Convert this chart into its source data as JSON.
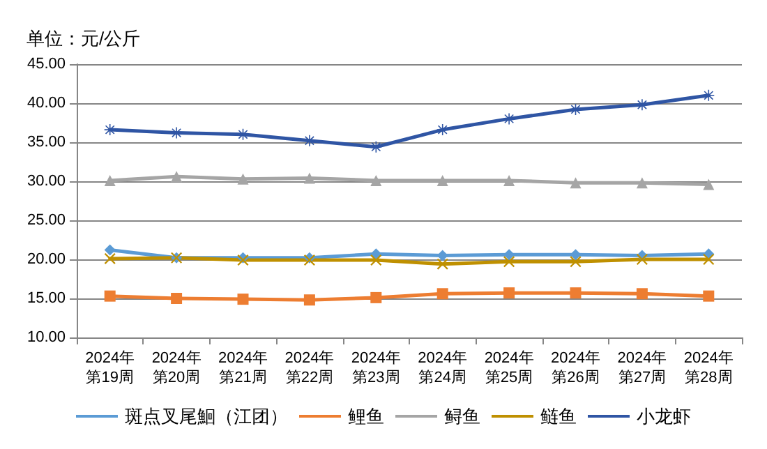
{
  "chart_data": {
    "type": "line",
    "title": "单位：元/公斤",
    "categories": [
      "2024年第19周",
      "2024年第20周",
      "2024年第21周",
      "2024年第22周",
      "2024年第23周",
      "2024年第24周",
      "2024年第25周",
      "2024年第26周",
      "2024年第27周",
      "2024年第28周"
    ],
    "series": [
      {
        "name": "斑点叉尾鮰（江团）",
        "color": "#5b9bd5",
        "marker": "diamond",
        "values": [
          21.2,
          20.2,
          20.2,
          20.2,
          20.7,
          20.5,
          20.6,
          20.6,
          20.5,
          20.7
        ]
      },
      {
        "name": "鲤鱼",
        "color": "#ed7d31",
        "marker": "square",
        "values": [
          15.3,
          15.0,
          14.9,
          14.8,
          15.1,
          15.6,
          15.7,
          15.7,
          15.6,
          15.3
        ]
      },
      {
        "name": "鲟鱼",
        "color": "#a5a5a5",
        "marker": "triangle",
        "values": [
          30.1,
          30.6,
          30.3,
          30.4,
          30.1,
          30.1,
          30.1,
          29.8,
          29.8,
          29.6
        ]
      },
      {
        "name": "鲢鱼",
        "color": "#bf9000",
        "marker": "cross",
        "values": [
          20.1,
          20.2,
          19.9,
          19.9,
          19.9,
          19.4,
          19.7,
          19.7,
          20.0,
          20.0
        ]
      },
      {
        "name": "小龙虾",
        "color": "#2f55a4",
        "marker": "star",
        "values": [
          36.6,
          36.2,
          36.0,
          35.2,
          34.4,
          36.6,
          38.0,
          39.2,
          39.8,
          41.0
        ]
      }
    ],
    "ylim": [
      10,
      45
    ],
    "yticks": [
      {
        "value": 10,
        "label": "10.00"
      },
      {
        "value": 15,
        "label": "15.00"
      },
      {
        "value": 20,
        "label": "20.00"
      },
      {
        "value": 25,
        "label": "25.00"
      },
      {
        "value": 30,
        "label": "30.00"
      },
      {
        "value": 35,
        "label": "35.00"
      },
      {
        "value": 40,
        "label": "40.00"
      },
      {
        "value": 45,
        "label": "45.00"
      }
    ],
    "grid": "y",
    "legend": "bottom",
    "line_style": "solid"
  }
}
